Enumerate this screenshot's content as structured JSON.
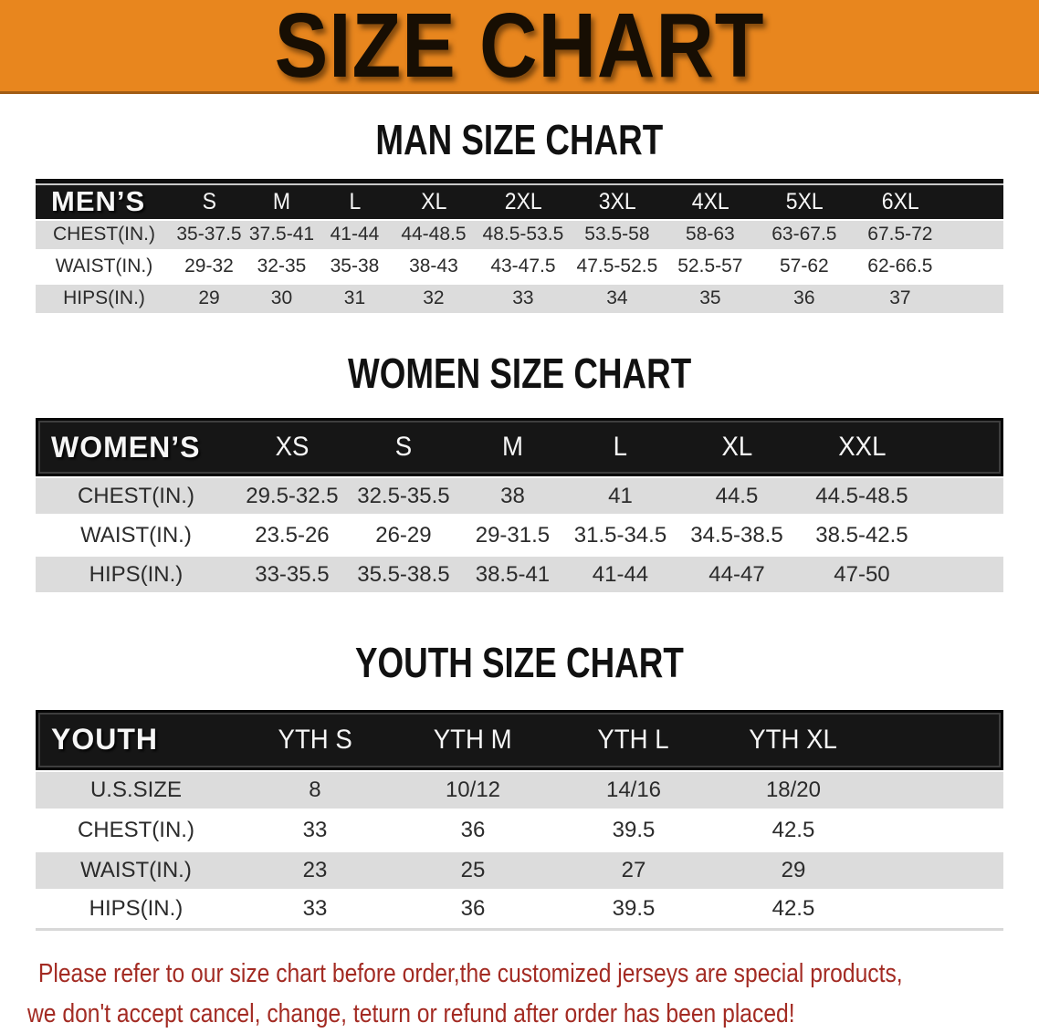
{
  "banner": {
    "title": "SIZE CHART",
    "bg_color": "#E8861E",
    "text_color": "#170E03"
  },
  "sections": [
    {
      "heading": "MAN SIZE CHART",
      "group_label": "MEN’S",
      "sizes": [
        "S",
        "M",
        "L",
        "XL",
        "2XL",
        "3XL",
        "4XL",
        "5XL",
        "6XL"
      ],
      "rows": [
        {
          "label": "CHEST(IN.)",
          "values": [
            "35-37.5",
            "37.5-41",
            "41-44",
            "44-48.5",
            "48.5-53.5",
            "53.5-58",
            "58-63",
            "63-67.5",
            "67.5-72"
          ]
        },
        {
          "label": "WAIST(IN.)",
          "values": [
            "29-32",
            "32-35",
            "35-38",
            "38-43",
            "43-47.5",
            "47.5-52.5",
            "52.5-57",
            "57-62",
            "62-66.5"
          ]
        },
        {
          "label": "HIPS(IN.)",
          "values": [
            "29",
            "30",
            "31",
            "32",
            "33",
            "34",
            "35",
            "36",
            "37"
          ]
        }
      ]
    },
    {
      "heading": "WOMEN SIZE CHART",
      "group_label": "WOMEN’S",
      "sizes": [
        "XS",
        "S",
        "M",
        "L",
        "XL",
        "XXL"
      ],
      "rows": [
        {
          "label": "CHEST(IN.)",
          "values": [
            "29.5-32.5",
            "32.5-35.5",
            "38",
            "41",
            "44.5",
            "44.5-48.5"
          ]
        },
        {
          "label": "WAIST(IN.)",
          "values": [
            "23.5-26",
            "26-29",
            "29-31.5",
            "31.5-34.5",
            "34.5-38.5",
            "38.5-42.5"
          ]
        },
        {
          "label": "HIPS(IN.)",
          "values": [
            "33-35.5",
            "35.5-38.5",
            "38.5-41",
            "41-44",
            "44-47",
            "47-50"
          ]
        }
      ]
    },
    {
      "heading": "YOUTH SIZE CHART",
      "group_label": "YOUTH",
      "sizes": [
        "YTH S",
        "YTH M",
        "YTH L",
        "YTH XL"
      ],
      "rows": [
        {
          "label": "U.S.SIZE",
          "values": [
            "8",
            "10/12",
            "14/16",
            "18/20"
          ]
        },
        {
          "label": "CHEST(IN.)",
          "values": [
            "33",
            "36",
            "39.5",
            "42.5"
          ]
        },
        {
          "label": "WAIST(IN.)",
          "values": [
            "23",
            "25",
            "27",
            "29"
          ]
        },
        {
          "label": "HIPS(IN.)",
          "values": [
            "33",
            "36",
            "39.5",
            "42.5"
          ]
        }
      ]
    }
  ],
  "disclaimer": {
    "line1": "Please refer to our size chart before order,the customized jerseys are special products,",
    "line2": "we don't accept cancel, change, teturn or refund after order has been placed!",
    "color": "#A32B23"
  },
  "colors": {
    "stripe": "#DCDCDC",
    "header_bar": "#161616",
    "banner_border": "#A15C14"
  }
}
